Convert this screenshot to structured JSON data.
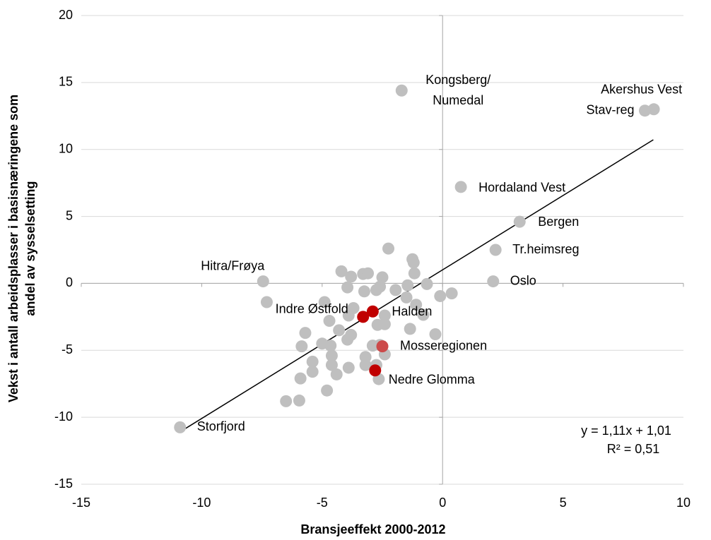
{
  "chart_data": {
    "type": "scatter",
    "x_label": "Bransjeeffekt 2000-2012",
    "y_label": [
      "Vekst i antall arbeidsplasser i basisnæringene som",
      "andel av sysselsetting"
    ],
    "xlim": [
      -15,
      10
    ],
    "xticks": [
      -15,
      -10,
      -5,
      0,
      5,
      10
    ],
    "ylim": [
      -15,
      20
    ],
    "yticks": [
      -15,
      -10,
      -5,
      0,
      5,
      10,
      15,
      20
    ],
    "grid": true,
    "series": [
      {
        "color": "#bfbfbf",
        "x": [
          -1.7,
          8.77,
          8.4,
          0.76,
          3.2,
          2.2,
          2.1,
          -7.45,
          -10.9,
          -7.3,
          -5.7,
          -5.85,
          -5.4,
          -5.4,
          -5.9,
          -6.5,
          -5.95,
          -4.8,
          -4.4,
          -4.6,
          -4.6,
          -3.9,
          -4.65,
          -5.0,
          -4.7,
          -4.9,
          -4.3,
          -3.95,
          -3.8,
          -3.9,
          -3.7,
          -3.95,
          -4.2,
          -3.8,
          -3.3,
          -3.1,
          -3.25,
          -2.75,
          -2.5,
          -2.6,
          -2.25,
          -1.95,
          -1.5,
          -1.25,
          -1.2,
          -1.17,
          -1.1,
          -1.35,
          -0.65,
          -0.8,
          -0.3,
          -0.1,
          0.38,
          -1.45,
          -2.4,
          -2.4,
          -2.7,
          -2.9,
          -2.6,
          -3.2,
          -3.2,
          -2.4,
          -2.65,
          -2.75
        ],
        "y": [
          14.4,
          13.0,
          12.9,
          7.2,
          4.6,
          2.5,
          0.15,
          0.15,
          -10.75,
          -1.4,
          -3.7,
          -4.7,
          -5.85,
          -6.6,
          -7.1,
          -8.8,
          -8.75,
          -8.0,
          -6.8,
          -6.1,
          -5.4,
          -6.3,
          -4.65,
          -4.5,
          -2.8,
          -1.4,
          -3.5,
          -4.2,
          -3.85,
          -2.4,
          -1.85,
          -0.3,
          0.9,
          0.5,
          0.7,
          0.75,
          -0.6,
          -0.5,
          0.45,
          -0.25,
          2.6,
          -0.5,
          -1.05,
          1.8,
          1.55,
          0.75,
          -1.6,
          -3.4,
          -0.05,
          -2.35,
          -3.8,
          -0.95,
          -0.75,
          -0.15,
          -2.4,
          -3.05,
          -3.1,
          -4.65,
          -4.6,
          -5.5,
          -6.1,
          -5.3,
          -7.15,
          -6.1
        ],
        "labels": [
          [
            "Kongsberg/",
            "Numedal"
          ],
          "Akershus Vest",
          "Stav-reg",
          "Hordaland Vest",
          "Bergen",
          "Tr.heimsreg",
          "Oslo",
          "Hitra/Frøya",
          "Storfjord"
        ]
      },
      {
        "color": "#c00000",
        "x": [
          -3.3,
          -2.9,
          -2.8
        ],
        "y": [
          -2.5,
          -2.1,
          -6.5
        ],
        "labels": [
          "Indre Østfold",
          "Halden",
          "Nedre Glomma"
        ]
      },
      {
        "color": "#cc4a4a",
        "x": [
          -2.5
        ],
        "y": [
          -4.7
        ],
        "labels": [
          "Mosseregionen"
        ]
      }
    ],
    "trendline": {
      "x_range": [
        -10.9,
        8.75
      ],
      "slope": 1.11,
      "intercept": 1.01,
      "color": "#000000",
      "label": [
        "y = 1,11x + 1,01",
        "R² = 0,51"
      ]
    }
  }
}
